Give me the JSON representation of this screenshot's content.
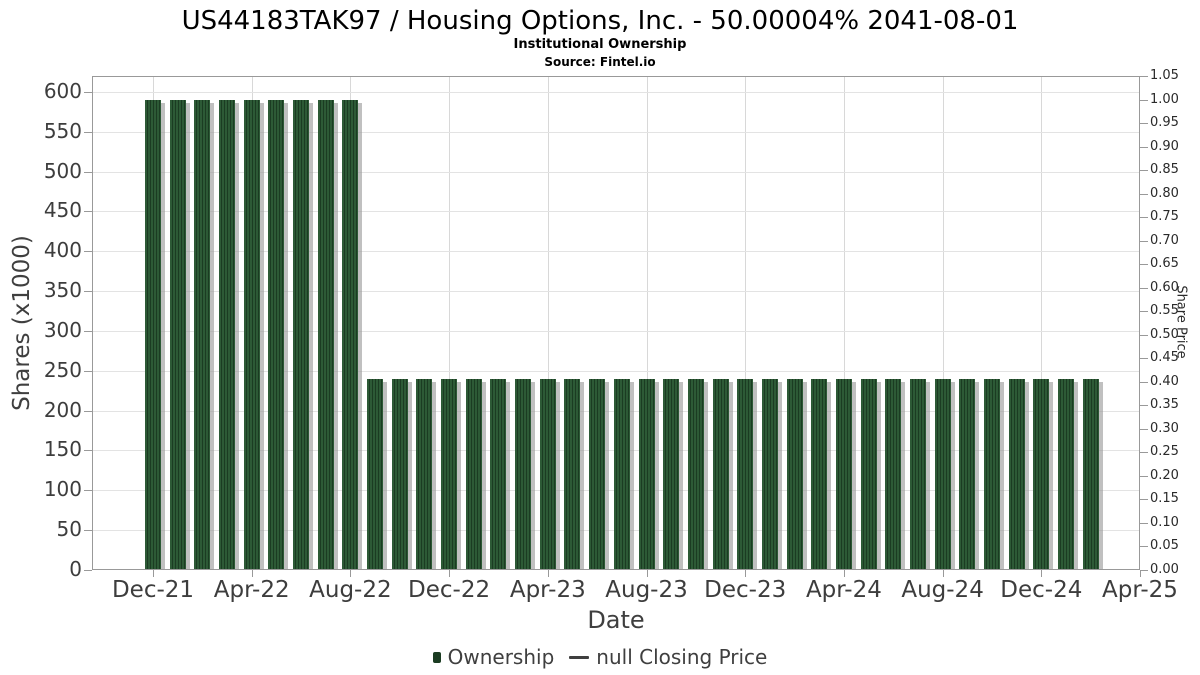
{
  "header": {
    "title": "US44183TAK97 / Housing Options, Inc. - 50.00004% 2041-08-01",
    "subtitle": "Institutional Ownership",
    "source": "Source: Fintel.io"
  },
  "chart_data": {
    "type": "bar",
    "title": "US44183TAK97 / Housing Options, Inc. - 50.00004% 2041-08-01",
    "subtitle": "Institutional Ownership",
    "source": "Source: Fintel.io",
    "xlabel": "Date",
    "ylabel_left": "Shares (x1000)",
    "ylabel_right": "Share Price",
    "legend_position": "bottom",
    "grid": true,
    "categories": [
      "Dec-21",
      "Jan-22",
      "Feb-22",
      "Mar-22",
      "Apr-22",
      "May-22",
      "Jun-22",
      "Jul-22",
      "Aug-22",
      "Sep-22",
      "Oct-22",
      "Nov-22",
      "Dec-22",
      "Jan-23",
      "Feb-23",
      "Mar-23",
      "Apr-23",
      "May-23",
      "Jun-23",
      "Jul-23",
      "Aug-23",
      "Sep-23",
      "Oct-23",
      "Nov-23",
      "Dec-23",
      "Jan-24",
      "Feb-24",
      "Mar-24",
      "Apr-24",
      "May-24",
      "Jun-24",
      "Jul-24",
      "Aug-24",
      "Sep-24",
      "Oct-24",
      "Nov-24",
      "Dec-24",
      "Jan-25",
      "Feb-25"
    ],
    "series": [
      {
        "name": "Ownership",
        "axis": "left",
        "units": "thousands of shares",
        "values": [
          590,
          590,
          590,
          590,
          590,
          590,
          590,
          590,
          590,
          240,
          240,
          240,
          240,
          240,
          240,
          240,
          240,
          240,
          240,
          240,
          240,
          240,
          240,
          240,
          240,
          240,
          240,
          240,
          240,
          240,
          240,
          240,
          240,
          240,
          240,
          240,
          240,
          240,
          240
        ]
      },
      {
        "name": "null Closing Price",
        "axis": "right",
        "values": []
      }
    ],
    "x_tick_labels": [
      "Dec-21",
      "Apr-22",
      "Aug-22",
      "Dec-22",
      "Apr-23",
      "Aug-23",
      "Dec-23",
      "Apr-24",
      "Aug-24",
      "Dec-24",
      "Apr-25"
    ],
    "left_axis": {
      "ticks": [
        0,
        50,
        100,
        150,
        200,
        250,
        300,
        350,
        400,
        450,
        500,
        550,
        600
      ]
    },
    "right_axis": {
      "ticks": [
        "0.00",
        "0.05",
        "0.10",
        "0.15",
        "0.20",
        "0.25",
        "0.30",
        "0.35",
        "0.40",
        "0.45",
        "0.50",
        "0.55",
        "0.60",
        "0.65",
        "0.70",
        "0.75",
        "0.80",
        "0.85",
        "0.90",
        "0.95",
        "1.00",
        "1.05"
      ]
    },
    "ylim_left": [
      0,
      620
    ],
    "ylim_right": [
      0,
      1.05
    ]
  },
  "colors": {
    "bar": "#2d5a36",
    "bar_stripe": "#1b3c22",
    "bar_shadow": "rgba(150,150,150,0.6)",
    "grid_h": "#e3e3e3",
    "grid_v": "#d8d8d8",
    "axis_border": "#999999",
    "tick": "#999999",
    "text": "#3d3d3d",
    "legend_dash": "#3f3f3f"
  }
}
